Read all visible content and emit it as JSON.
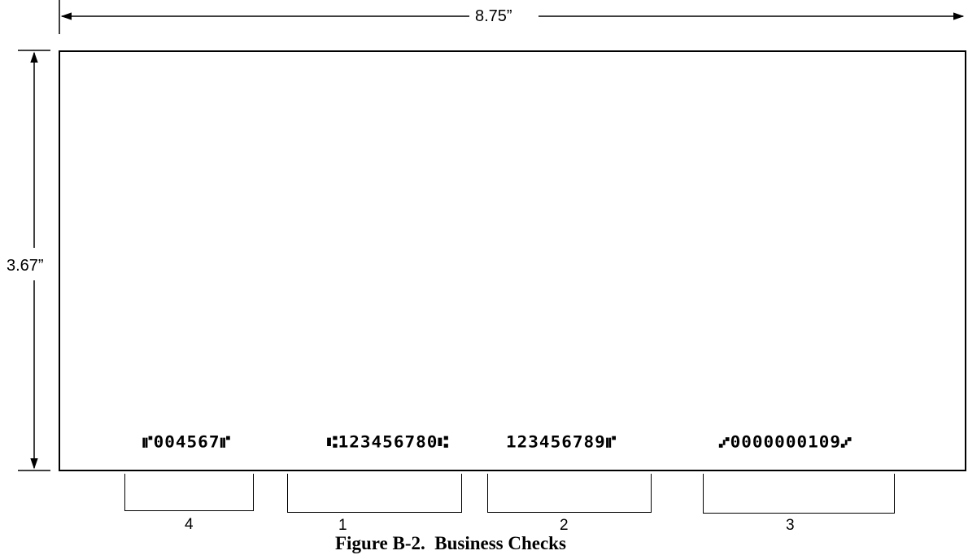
{
  "dimensions": {
    "width_label": "8.75”",
    "height_label": "3.67”"
  },
  "micr_fields": [
    {
      "field_number": "4",
      "text": "⑈004567⑈"
    },
    {
      "field_number": "1",
      "text": "⑆123456780⑆"
    },
    {
      "field_number": "2",
      "text": "123456789⑈"
    },
    {
      "field_number": "3",
      "text": "⑇0000000109⑇"
    }
  ],
  "caption": "Figure B-2.  Business Checks"
}
